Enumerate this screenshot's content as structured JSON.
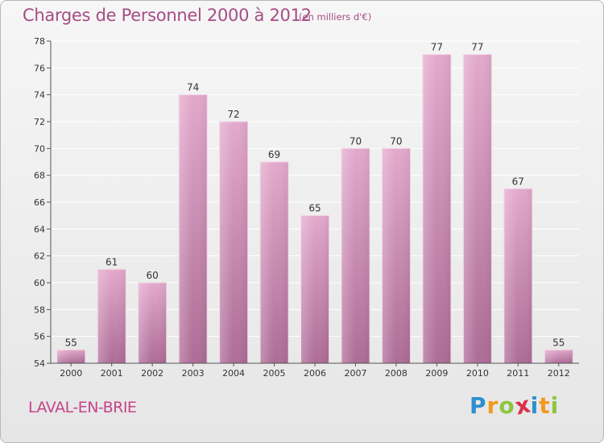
{
  "title": "Charges de Personnel 2000 à 2012",
  "subtitle": "(en milliers d'€)",
  "commune": "LAVAL-EN-BRIE",
  "logo": {
    "text": "Proxiti",
    "letters": [
      {
        "ch": "P",
        "color": "#2e8fd0"
      },
      {
        "ch": "r",
        "color": "#f29a1d"
      },
      {
        "ch": "o",
        "color": "#8cc63e"
      },
      {
        "ch": "x",
        "color": "#d9314a"
      },
      {
        "ch": "i",
        "color": "#2e8fd0"
      },
      {
        "ch": "t",
        "color": "#f29a1d"
      },
      {
        "ch": "i",
        "color": "#8cc63e"
      }
    ]
  },
  "colors": {
    "bar_top": "#e3a9cc",
    "bar_bottom": "#ad6c96",
    "text_accent": "#a64d84",
    "grid": "#ffffff",
    "axis_text": "#333333"
  },
  "chart_data": {
    "type": "bar",
    "title": "Charges de Personnel 2000 à 2012",
    "categories": [
      "2000",
      "2001",
      "2002",
      "2003",
      "2004",
      "2005",
      "2006",
      "2007",
      "2008",
      "2009",
      "2010",
      "2011",
      "2012"
    ],
    "values": [
      55,
      61,
      60,
      74,
      72,
      69,
      65,
      70,
      70,
      77,
      77,
      67,
      55
    ],
    "ylim": [
      54,
      78
    ],
    "yticks": [
      54,
      56,
      58,
      60,
      62,
      64,
      66,
      68,
      70,
      72,
      74,
      76,
      78
    ],
    "grid": true,
    "data_labels": true
  }
}
